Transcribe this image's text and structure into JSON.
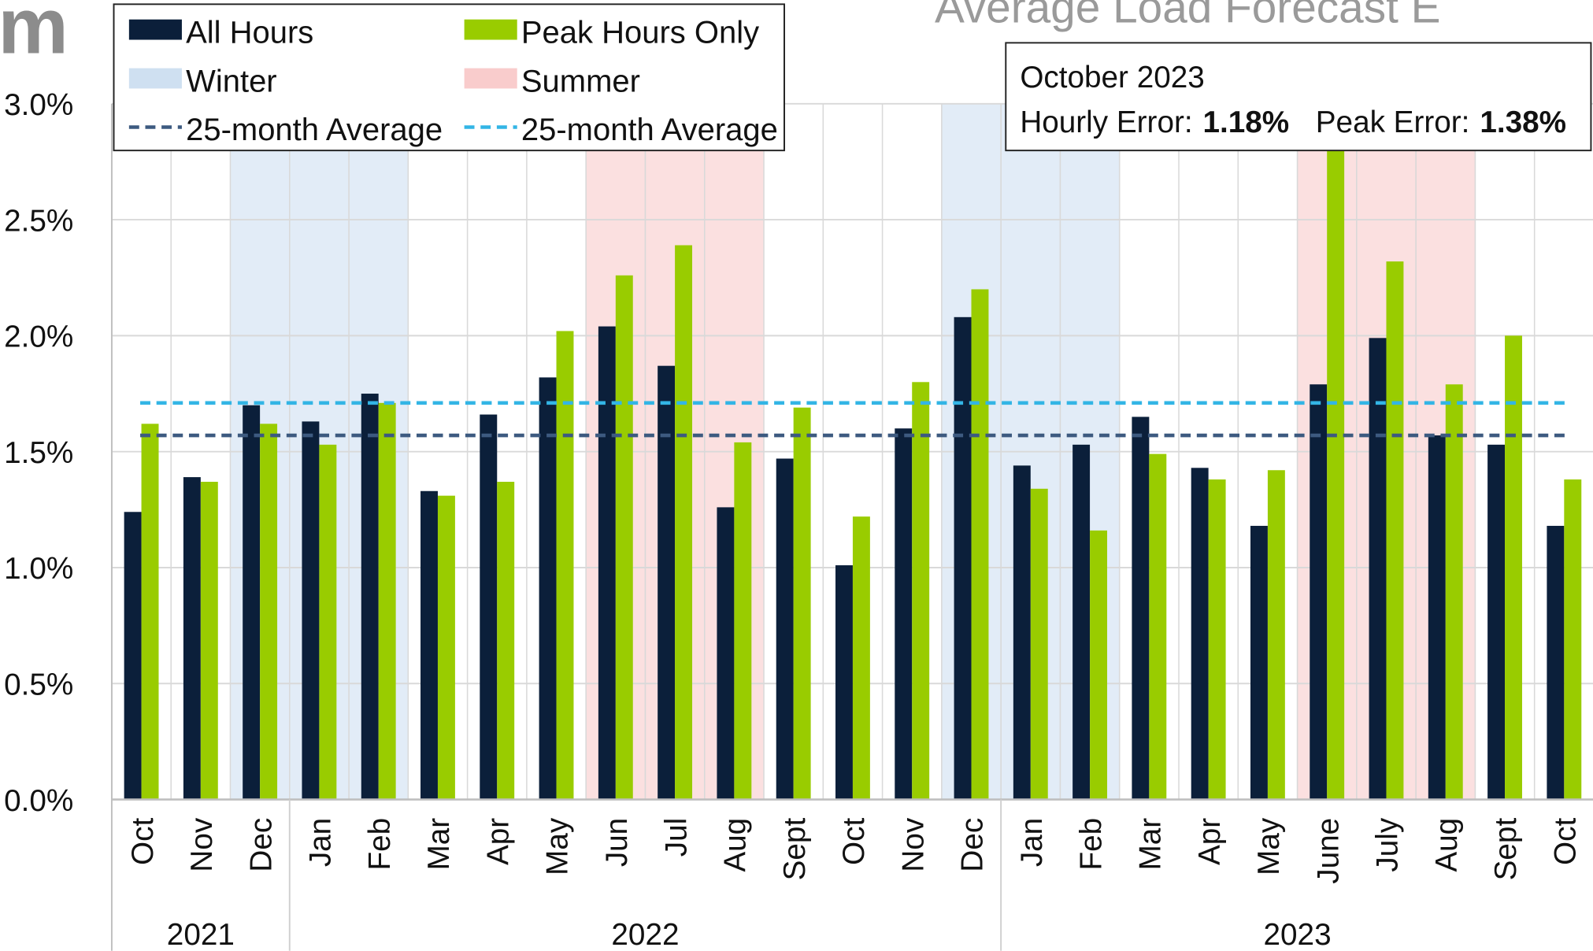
{
  "chart_data": {
    "type": "bar",
    "title": "Average Load Forecast E",
    "logo": "m",
    "categories": [
      "Oct",
      "Nov",
      "Dec",
      "Jan",
      "Feb",
      "Mar",
      "Apr",
      "May",
      "Jun",
      "Jul",
      "Aug",
      "Sept",
      "Oct",
      "Nov",
      "Dec",
      "Jan",
      "Feb",
      "Mar",
      "Apr",
      "May",
      "June",
      "July",
      "Aug",
      "Sept",
      "Oct"
    ],
    "years": [
      {
        "label": "2021",
        "span": 3
      },
      {
        "label": "2022",
        "span": 12
      },
      {
        "label": "2023",
        "span": 10
      }
    ],
    "series": [
      {
        "name": "All Hours",
        "color": "#0b1f3a",
        "values": [
          1.24,
          1.39,
          1.7,
          1.63,
          1.75,
          1.33,
          1.66,
          1.82,
          2.04,
          1.87,
          1.26,
          1.47,
          1.01,
          1.6,
          2.08,
          1.44,
          1.53,
          1.65,
          1.43,
          1.18,
          1.79,
          1.99,
          1.57,
          1.53,
          1.18
        ]
      },
      {
        "name": "Peak Hours Only",
        "color": "#99cc00",
        "values": [
          1.62,
          1.37,
          1.62,
          1.53,
          1.71,
          1.31,
          1.37,
          2.02,
          2.26,
          2.39,
          1.54,
          1.69,
          1.22,
          1.8,
          2.2,
          1.34,
          1.16,
          1.49,
          1.38,
          1.42,
          2.8,
          2.32,
          1.79,
          2.0,
          1.38
        ]
      }
    ],
    "seasons": [
      {
        "name": "Winter",
        "color": "#cfe0f1",
        "months": [
          2,
          3,
          4,
          14,
          15,
          16
        ]
      },
      {
        "name": "Summer",
        "color": "#f9cccc",
        "months": [
          8,
          9,
          10,
          20,
          21,
          22
        ]
      }
    ],
    "averages": [
      {
        "name": "25-month Average",
        "color": "#3d5a80",
        "value": 1.57
      },
      {
        "name": "25-month Average",
        "color": "#33b5e5",
        "value": 1.71
      }
    ],
    "ylim": [
      0,
      3.0
    ],
    "yticks": [
      {
        "value": 0,
        "label": "0.0%"
      },
      {
        "value": 0.5,
        "label": "0.5%"
      },
      {
        "value": 1.0,
        "label": "1.0%"
      },
      {
        "value": 1.5,
        "label": "1.5%"
      },
      {
        "value": 2.0,
        "label": "2.0%"
      },
      {
        "value": 2.5,
        "label": "2.5%"
      },
      {
        "value": 3.0,
        "label": "3.0%"
      }
    ],
    "grid": true,
    "info": {
      "heading": "October 2023",
      "hourly_label": "Hourly Error:",
      "hourly_value": "1.18%",
      "peak_label": "Peak Error:",
      "peak_value": "1.38%"
    }
  }
}
